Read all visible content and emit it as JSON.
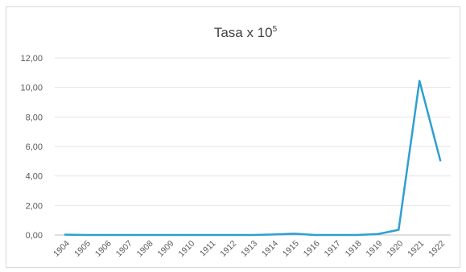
{
  "chart_data": {
    "type": "line",
    "title": "Tasa x 10",
    "title_superscript": "5",
    "xlabel": "",
    "ylabel": "",
    "categories": [
      "1904",
      "1905",
      "1906",
      "1907",
      "1908",
      "1909",
      "1910",
      "1911",
      "1912",
      "1913",
      "1914",
      "1915",
      "1916",
      "1917",
      "1918",
      "1919",
      "1920",
      "1921",
      "1922"
    ],
    "series": [
      {
        "values": [
          0.02,
          0.0,
          0.0,
          0.0,
          0.0,
          0.0,
          0.0,
          0.0,
          0.0,
          0.0,
          0.03,
          0.09,
          0.0,
          0.0,
          0.0,
          0.06,
          0.35,
          10.45,
          5.05
        ],
        "color": "#2e9fd1"
      }
    ],
    "ylim": [
      0,
      12
    ],
    "yticks": [
      "0,00",
      "2,00",
      "4,00",
      "6,00",
      "8,00",
      "10,00",
      "12,00"
    ],
    "grid": true,
    "legend": "none"
  }
}
